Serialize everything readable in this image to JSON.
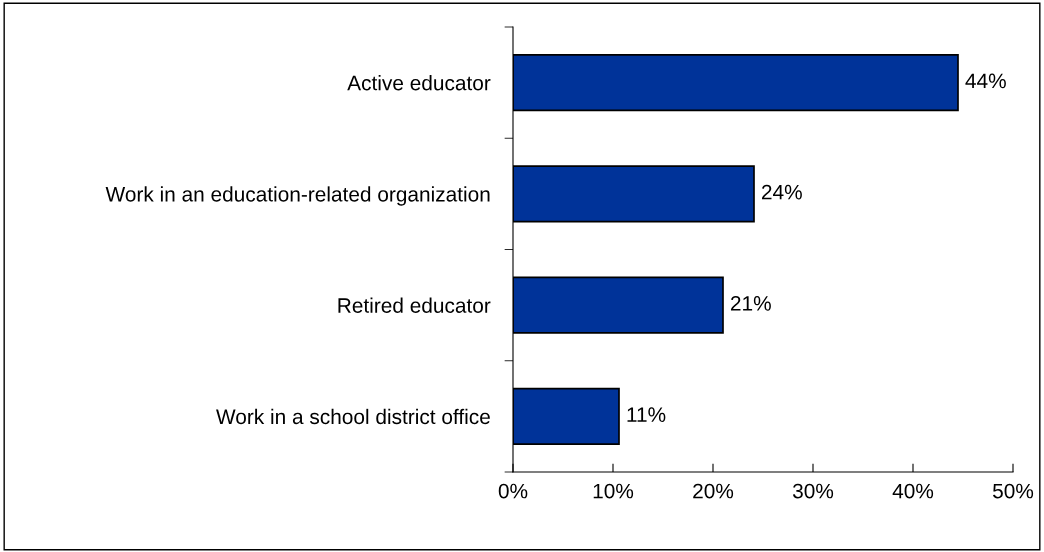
{
  "chart_data": {
    "type": "bar",
    "orientation": "horizontal",
    "categories": [
      "Active educator",
      "Work in an education-related organization",
      "Retired educator",
      "Work in a school district office"
    ],
    "values": [
      44.5,
      24.1,
      21.0,
      10.6
    ],
    "value_labels": [
      "44%",
      "24%",
      "21%",
      "11%"
    ],
    "color": "#003399",
    "xlim": [
      0,
      50
    ],
    "xticks": [
      {
        "value": 0,
        "label": "0%"
      },
      {
        "value": 10,
        "label": "10%"
      },
      {
        "value": 20,
        "label": "20%"
      },
      {
        "value": 30,
        "label": "30%"
      },
      {
        "value": 40,
        "label": "40%"
      },
      {
        "value": 50,
        "label": "50%"
      }
    ],
    "grid": false,
    "legend": false
  }
}
